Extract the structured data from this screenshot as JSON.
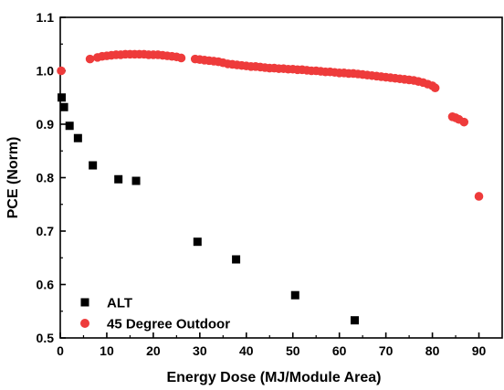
{
  "chart_data": {
    "type": "scatter",
    "xlabel": "Energy Dose (MJ/Module Area)",
    "ylabel": "PCE (Norm)",
    "xlim": [
      0,
      95
    ],
    "ylim": [
      0.5,
      1.1
    ],
    "x_ticks": [
      0,
      10,
      20,
      30,
      40,
      50,
      60,
      70,
      80,
      90
    ],
    "y_ticks": [
      0.5,
      0.6,
      0.7,
      0.8,
      0.9,
      1.0,
      1.1
    ],
    "x_tick_labels": [
      "0",
      "10",
      "20",
      "30",
      "40",
      "50",
      "60",
      "70",
      "80",
      "90"
    ],
    "y_tick_labels": [
      "0.5",
      "0.6",
      "0.7",
      "0.8",
      "0.9",
      "1.0",
      "1.1"
    ],
    "grid": false,
    "legend_position": "bottom-left",
    "series": [
      {
        "name": "ALT",
        "marker": "square",
        "color": "#000000",
        "x": [
          0.3,
          0.8,
          2.0,
          3.8,
          7.0,
          12.5,
          16.3,
          29.5,
          37.8,
          50.5,
          63.3
        ],
        "y": [
          0.95,
          0.932,
          0.897,
          0.874,
          0.823,
          0.797,
          0.794,
          0.68,
          0.647,
          0.58,
          0.533
        ]
      },
      {
        "name": "45 Degree Outdoor",
        "marker": "circle",
        "color": "#ee3b3b",
        "x": [
          0.2,
          6.4,
          8.0,
          9.0,
          10.0,
          11.0,
          12.0,
          13.0,
          14.0,
          15.0,
          16.0,
          17.0,
          18.0,
          19.0,
          20.0,
          21.0,
          22.0,
          23.0,
          24.0,
          25.0,
          26.0,
          29.0,
          30.0,
          31.0,
          32.0,
          33.0,
          34.0,
          35.0,
          36.0,
          37.0,
          38.0,
          39.0,
          40.0,
          41.0,
          42.0,
          43.0,
          44.0,
          45.0,
          46.0,
          47.0,
          48.0,
          49.0,
          50.0,
          51.0,
          52.0,
          53.0,
          54.0,
          55.0,
          56.0,
          57.0,
          58.0,
          59.0,
          60.0,
          61.0,
          62.0,
          63.0,
          64.0,
          65.0,
          66.0,
          67.0,
          68.0,
          69.0,
          70.0,
          71.0,
          72.0,
          73.0,
          74.0,
          75.0,
          76.0,
          77.0,
          78.0,
          79.0,
          80.0,
          80.6,
          84.3,
          85.0,
          85.7,
          86.8,
          90.0
        ],
        "y": [
          1.0,
          1.022,
          1.025,
          1.027,
          1.028,
          1.029,
          1.03,
          1.03,
          1.031,
          1.031,
          1.031,
          1.031,
          1.031,
          1.03,
          1.03,
          1.03,
          1.029,
          1.028,
          1.027,
          1.026,
          1.024,
          1.022,
          1.021,
          1.02,
          1.019,
          1.018,
          1.017,
          1.015,
          1.013,
          1.012,
          1.011,
          1.01,
          1.009,
          1.008,
          1.008,
          1.007,
          1.006,
          1.005,
          1.005,
          1.004,
          1.004,
          1.003,
          1.003,
          1.002,
          1.002,
          1.001,
          1.0,
          1.0,
          0.999,
          0.998,
          0.998,
          0.997,
          0.996,
          0.996,
          0.995,
          0.995,
          0.994,
          0.993,
          0.992,
          0.991,
          0.99,
          0.989,
          0.988,
          0.987,
          0.986,
          0.985,
          0.984,
          0.983,
          0.982,
          0.98,
          0.978,
          0.975,
          0.972,
          0.968,
          0.914,
          0.912,
          0.909,
          0.904,
          0.765
        ]
      }
    ]
  }
}
